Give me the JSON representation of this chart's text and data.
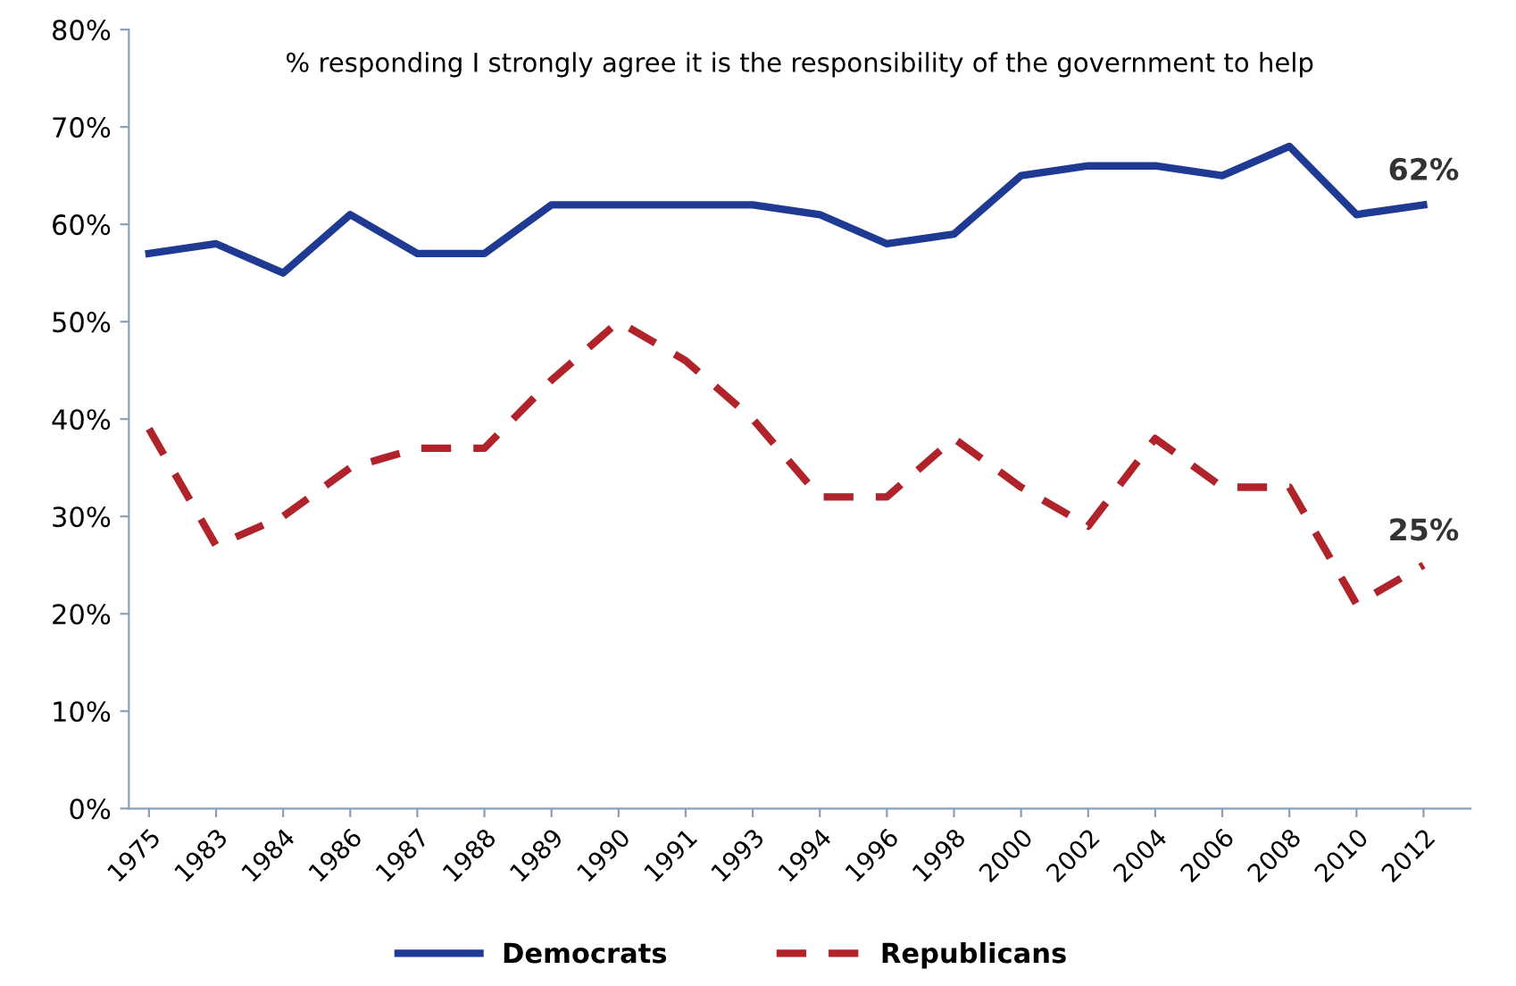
{
  "chart_data": {
    "type": "line",
    "title": "% responding I strongly agree it is the responsibility of the government to help",
    "categories": [
      "1975",
      "1983",
      "1984",
      "1986",
      "1987",
      "1988",
      "1989",
      "1990",
      "1991",
      "1993",
      "1994",
      "1996",
      "1998",
      "2000",
      "2002",
      "2004",
      "2006",
      "2008",
      "2010",
      "2012"
    ],
    "series": [
      {
        "name": "Democrats",
        "color": "#1f3a93",
        "line_style": "solid",
        "values": [
          57,
          58,
          55,
          61,
          57,
          57,
          62,
          62,
          62,
          62,
          61,
          58,
          59,
          65,
          66,
          66,
          65,
          68,
          61,
          62
        ]
      },
      {
        "name": "Republicans",
        "color": "#b0232a",
        "line_style": "dashed",
        "values": [
          39,
          27,
          30,
          35,
          37,
          37,
          44,
          50,
          46,
          40,
          32,
          32,
          38,
          33,
          29,
          38,
          33,
          33,
          21,
          25
        ]
      }
    ],
    "ylim": [
      0,
      80
    ],
    "yticks": [
      {
        "value": 0,
        "label": "0%"
      },
      {
        "value": 10,
        "label": "10%"
      },
      {
        "value": 20,
        "label": "20%"
      },
      {
        "value": 30,
        "label": "30%"
      },
      {
        "value": 40,
        "label": "40%"
      },
      {
        "value": 50,
        "label": "50%"
      },
      {
        "value": 60,
        "label": "60%"
      },
      {
        "value": 70,
        "label": "70%"
      },
      {
        "value": 80,
        "label": "80%"
      }
    ],
    "annotations": [
      {
        "text": "62%",
        "x": "2012",
        "y": 62
      },
      {
        "text": "25%",
        "x": "2012",
        "y": 25
      }
    ],
    "grid": false,
    "legend": "bottom",
    "marker": "none"
  }
}
